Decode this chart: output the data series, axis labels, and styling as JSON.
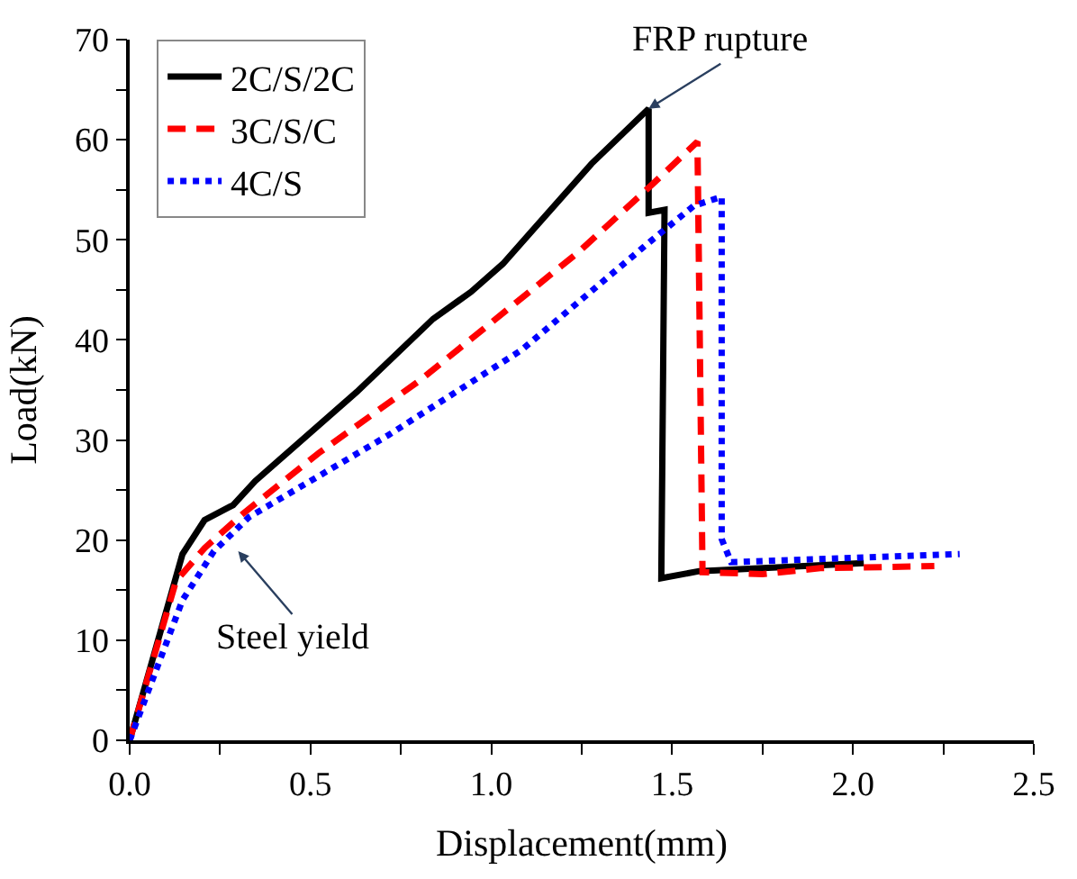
{
  "chart_data": {
    "type": "line",
    "xlabel": "Displacement(mm)",
    "ylabel": "Load(kN)",
    "xlim": [
      0,
      2.5
    ],
    "ylim": [
      0,
      70
    ],
    "xticks": [
      {
        "value": 0,
        "label": "0.0"
      },
      {
        "value": 0.25,
        "label": null
      },
      {
        "value": 0.5,
        "label": "0.5"
      },
      {
        "value": 0.75,
        "label": null
      },
      {
        "value": 1,
        "label": "1.0"
      },
      {
        "value": 1.25,
        "label": null
      },
      {
        "value": 1.5,
        "label": "1.5"
      },
      {
        "value": 1.75,
        "label": null
      },
      {
        "value": 2,
        "label": "2.0"
      },
      {
        "value": 2.25,
        "label": null
      },
      {
        "value": 2.5,
        "label": "2.5"
      }
    ],
    "yticks": [
      0,
      {
        "value": 5,
        "label": null
      },
      10,
      {
        "value": 15,
        "label": null
      },
      20,
      {
        "value": 25,
        "label": null
      },
      30,
      {
        "value": 35,
        "label": null
      },
      40,
      {
        "value": 45,
        "label": null
      },
      50,
      {
        "value": 55,
        "label": null
      },
      60,
      {
        "value": 65,
        "label": null
      },
      70
    ],
    "legend": "top left",
    "marker": "none",
    "series": [
      {
        "name": "2C/S/2C",
        "color": "#000000",
        "line_style": "solid",
        "x": [
          0,
          0.146,
          0.207,
          0.286,
          0.347,
          0.628,
          0.839,
          0.944,
          1.032,
          1.277,
          1.435,
          1.435,
          1.479,
          1.47,
          1.575,
          2.03
        ],
        "values": [
          0,
          18.6,
          22,
          23.5,
          25.9,
          34.8,
          42.1,
          44.8,
          47.6,
          57.6,
          63.1,
          52.7,
          53,
          16.2,
          16.9,
          17.7
        ]
      },
      {
        "name": "3C/S/C",
        "color": "#ff0000",
        "line_style": "dashed",
        "x": [
          0,
          0.128,
          0.207,
          0.312,
          0.523,
          0.804,
          1.242,
          1.444,
          1.57,
          1.584,
          1.75,
          1.91,
          2.225
        ],
        "values": [
          0,
          15.9,
          19.2,
          22.6,
          28.7,
          36,
          48.8,
          55.5,
          59.8,
          16.8,
          16.6,
          17.2,
          17.4
        ]
      },
      {
        "name": "4C/S",
        "color": "#0000ff",
        "line_style": "dotted",
        "x": [
          0,
          0.146,
          0.233,
          0.33,
          0.716,
          1.084,
          1.435,
          1.56,
          1.637,
          1.637,
          1.663,
          2.295
        ],
        "values": [
          0,
          14,
          18.9,
          22.3,
          30.5,
          39,
          49.7,
          53.4,
          54.3,
          20.1,
          17.8,
          18.6
        ]
      }
    ],
    "annotations": [
      {
        "text": "FRP rupture",
        "x": 1.435,
        "y": 63.1
      },
      "Steel yield"
    ]
  }
}
